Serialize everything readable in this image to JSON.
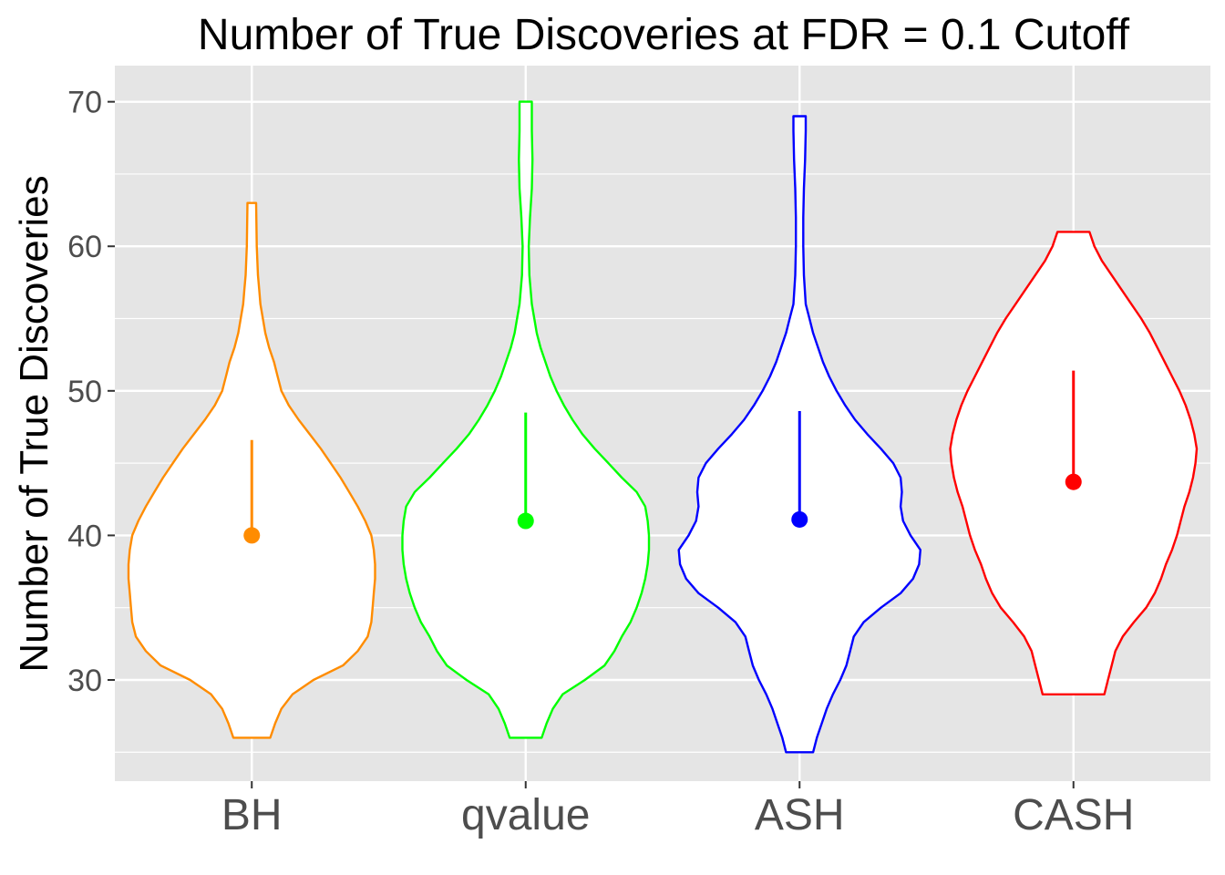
{
  "chart_data": {
    "type": "violin",
    "title": "Number of True Discoveries at FDR = 0.1 Cutoff",
    "xlabel": "",
    "ylabel": "Number of True Discoveries",
    "categories": [
      "BH",
      "qvalue",
      "ASH",
      "CASH"
    ],
    "ylim": [
      23,
      72.5
    ],
    "yticks": [
      30,
      40,
      50,
      60,
      70
    ],
    "background": "#e5e5e5",
    "grid": true,
    "gridColor": "#ffffff",
    "series": [
      {
        "category": "BH",
        "color": "#ff8c00",
        "point": 40.0,
        "line_to": 46.6,
        "profile": [
          [
            26,
            0.15
          ],
          [
            27,
            0.19
          ],
          [
            28,
            0.24
          ],
          [
            29,
            0.33
          ],
          [
            30,
            0.5
          ],
          [
            31,
            0.74
          ],
          [
            32,
            0.86
          ],
          [
            33,
            0.94
          ],
          [
            34,
            0.97
          ],
          [
            35,
            0.98
          ],
          [
            36,
            0.99
          ],
          [
            37,
            1.0
          ],
          [
            38,
            1.0
          ],
          [
            39,
            0.99
          ],
          [
            40,
            0.97
          ],
          [
            41,
            0.92
          ],
          [
            42,
            0.86
          ],
          [
            43,
            0.79
          ],
          [
            44,
            0.72
          ],
          [
            45,
            0.64
          ],
          [
            46,
            0.56
          ],
          [
            47,
            0.47
          ],
          [
            48,
            0.38
          ],
          [
            49,
            0.3
          ],
          [
            50,
            0.24
          ],
          [
            51,
            0.21
          ],
          [
            52,
            0.18
          ],
          [
            53,
            0.14
          ],
          [
            54,
            0.11
          ],
          [
            55,
            0.09
          ],
          [
            56,
            0.07
          ],
          [
            57,
            0.06
          ],
          [
            58,
            0.05
          ],
          [
            60,
            0.04
          ],
          [
            63,
            0.035
          ]
        ]
      },
      {
        "category": "qvalue",
        "color": "#00ff00",
        "point": 41.0,
        "line_to": 48.5,
        "profile": [
          [
            26,
            0.13
          ],
          [
            27,
            0.17
          ],
          [
            28,
            0.22
          ],
          [
            29,
            0.3
          ],
          [
            30,
            0.48
          ],
          [
            31,
            0.64
          ],
          [
            32,
            0.72
          ],
          [
            33,
            0.78
          ],
          [
            34,
            0.85
          ],
          [
            35,
            0.9
          ],
          [
            36,
            0.94
          ],
          [
            37,
            0.97
          ],
          [
            38,
            0.99
          ],
          [
            39,
            1.0
          ],
          [
            40,
            1.0
          ],
          [
            41,
            0.99
          ],
          [
            42,
            0.97
          ],
          [
            43,
            0.9
          ],
          [
            44,
            0.78
          ],
          [
            45,
            0.67
          ],
          [
            46,
            0.56
          ],
          [
            47,
            0.46
          ],
          [
            48,
            0.38
          ],
          [
            49,
            0.31
          ],
          [
            50,
            0.25
          ],
          [
            51,
            0.2
          ],
          [
            52,
            0.16
          ],
          [
            53,
            0.12
          ],
          [
            54,
            0.09
          ],
          [
            55,
            0.07
          ],
          [
            56,
            0.05
          ],
          [
            58,
            0.03
          ],
          [
            60,
            0.025
          ],
          [
            62,
            0.035
          ],
          [
            64,
            0.05
          ],
          [
            66,
            0.055
          ],
          [
            68,
            0.05
          ],
          [
            70,
            0.05
          ]
        ]
      },
      {
        "category": "ASH",
        "color": "#0000ff",
        "point": 41.1,
        "line_to": 48.6,
        "profile": [
          [
            25,
            0.11
          ],
          [
            26,
            0.14
          ],
          [
            27,
            0.18
          ],
          [
            28,
            0.22
          ],
          [
            29,
            0.27
          ],
          [
            30,
            0.33
          ],
          [
            31,
            0.38
          ],
          [
            32,
            0.41
          ],
          [
            33,
            0.44
          ],
          [
            34,
            0.52
          ],
          [
            35,
            0.66
          ],
          [
            36,
            0.82
          ],
          [
            37,
            0.92
          ],
          [
            38,
            0.97
          ],
          [
            39,
            0.98
          ],
          [
            40,
            0.9
          ],
          [
            41,
            0.84
          ],
          [
            42,
            0.82
          ],
          [
            43,
            0.83
          ],
          [
            44,
            0.82
          ],
          [
            45,
            0.76
          ],
          [
            46,
            0.66
          ],
          [
            47,
            0.55
          ],
          [
            48,
            0.45
          ],
          [
            49,
            0.37
          ],
          [
            50,
            0.3
          ],
          [
            51,
            0.24
          ],
          [
            52,
            0.19
          ],
          [
            53,
            0.15
          ],
          [
            54,
            0.11
          ],
          [
            55,
            0.08
          ],
          [
            56,
            0.05
          ],
          [
            58,
            0.035
          ],
          [
            60,
            0.03
          ],
          [
            62,
            0.03
          ],
          [
            64,
            0.035
          ],
          [
            66,
            0.045
          ],
          [
            68,
            0.05
          ],
          [
            69,
            0.05
          ]
        ]
      },
      {
        "category": "CASH",
        "color": "#ff0000",
        "point": 43.7,
        "line_to": 51.4,
        "profile": [
          [
            29,
            0.25
          ],
          [
            30,
            0.28
          ],
          [
            31,
            0.31
          ],
          [
            32,
            0.34
          ],
          [
            33,
            0.4
          ],
          [
            34,
            0.49
          ],
          [
            35,
            0.59
          ],
          [
            36,
            0.66
          ],
          [
            37,
            0.71
          ],
          [
            38,
            0.75
          ],
          [
            39,
            0.8
          ],
          [
            40,
            0.84
          ],
          [
            41,
            0.87
          ],
          [
            42,
            0.9
          ],
          [
            43,
            0.94
          ],
          [
            44,
            0.97
          ],
          [
            45,
            0.99
          ],
          [
            46,
            1.0
          ],
          [
            47,
            0.98
          ],
          [
            48,
            0.95
          ],
          [
            49,
            0.91
          ],
          [
            50,
            0.86
          ],
          [
            51,
            0.8
          ],
          [
            52,
            0.74
          ],
          [
            53,
            0.68
          ],
          [
            54,
            0.62
          ],
          [
            55,
            0.55
          ],
          [
            56,
            0.47
          ],
          [
            57,
            0.39
          ],
          [
            58,
            0.31
          ],
          [
            59,
            0.23
          ],
          [
            60,
            0.17
          ],
          [
            61,
            0.13
          ]
        ]
      }
    ]
  }
}
